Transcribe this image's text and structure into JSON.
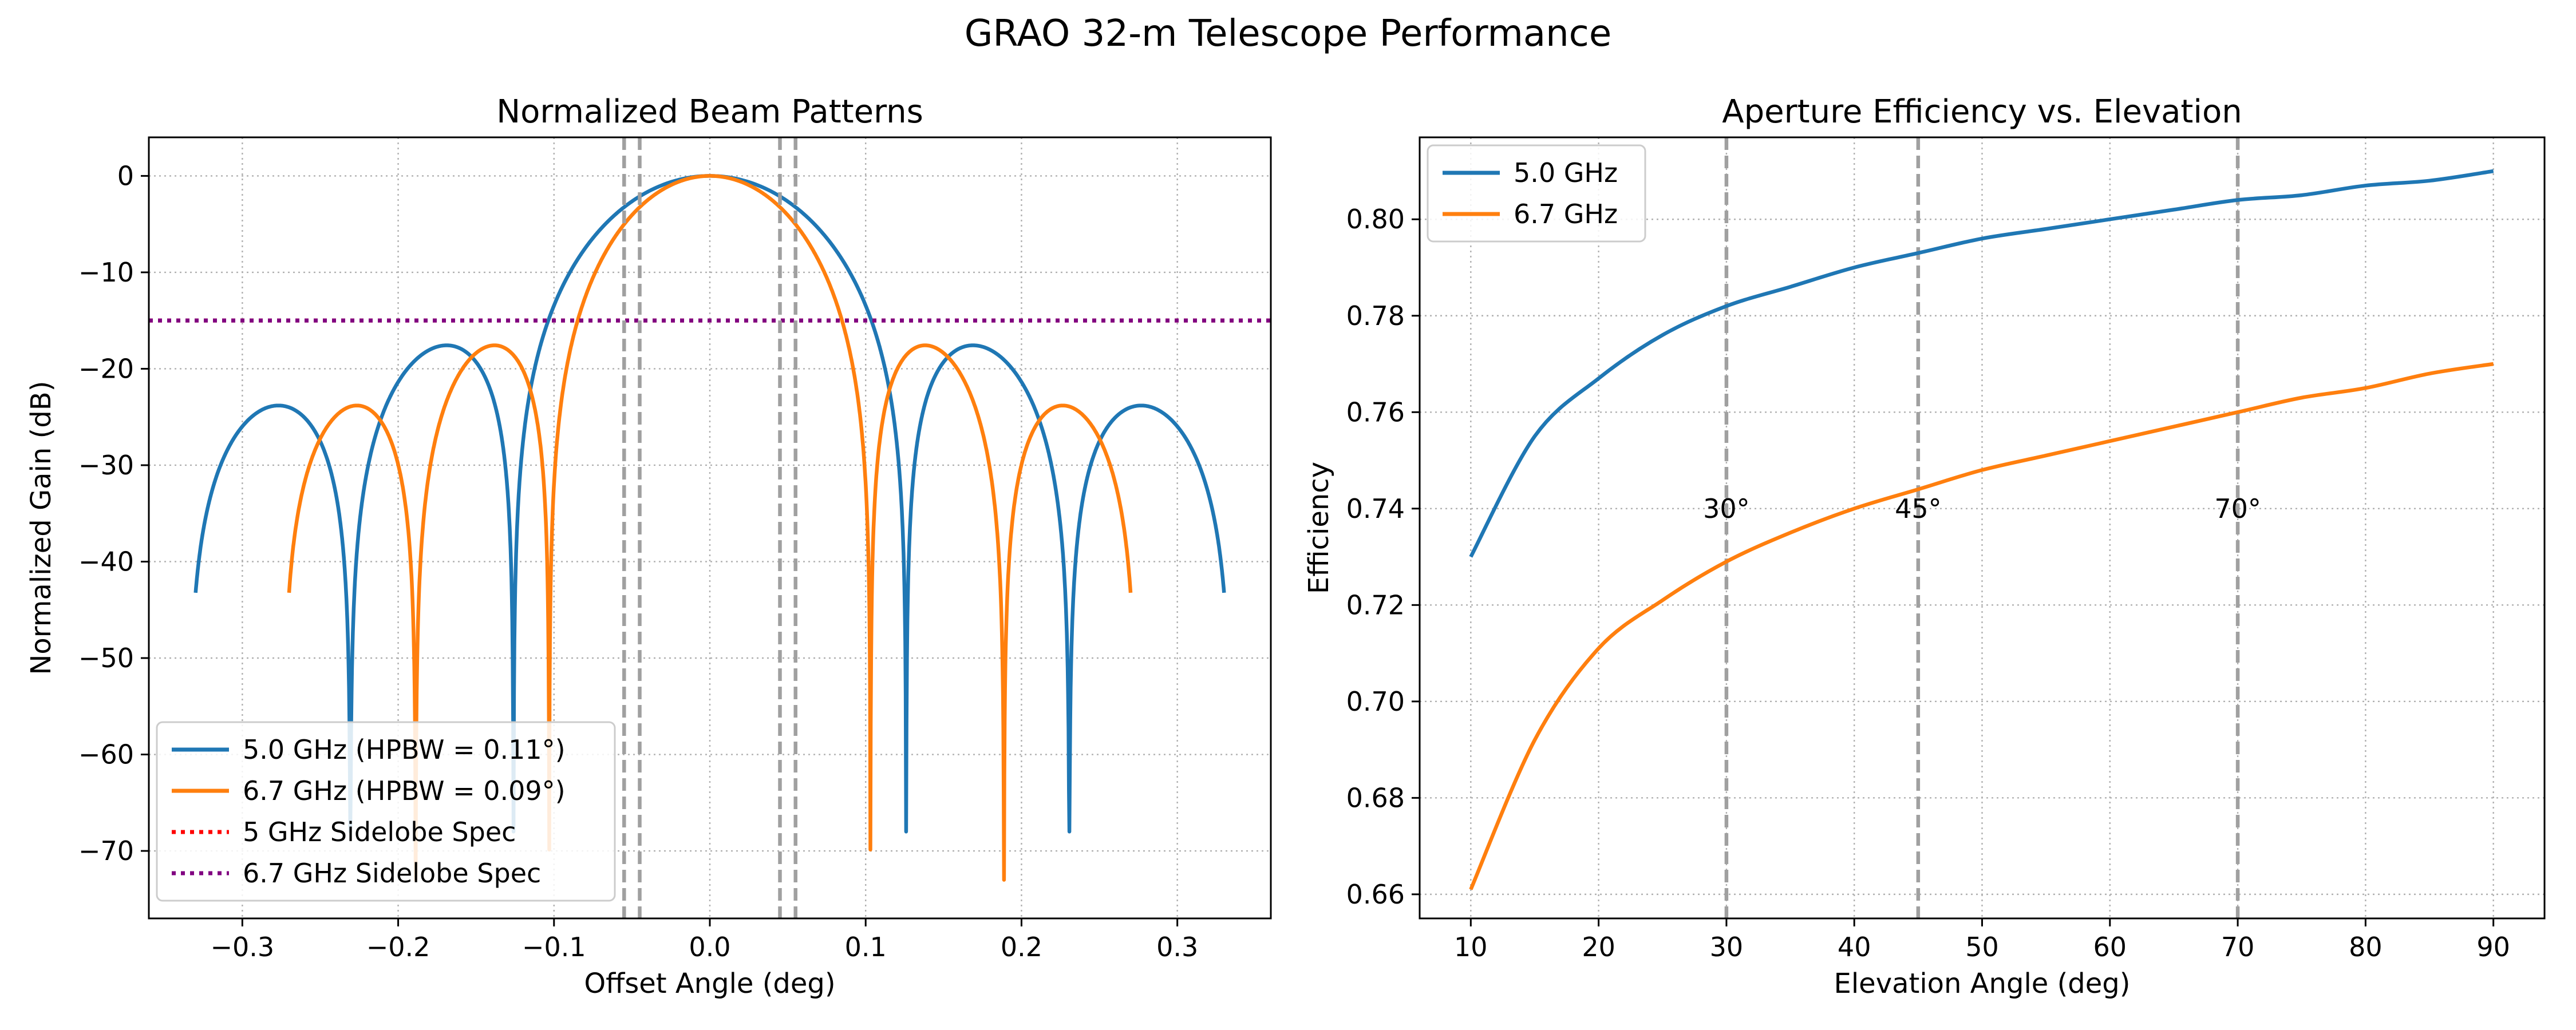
{
  "figure_title": "GRAO 32-m Telescope Performance",
  "colors": {
    "blue": "#1f77b4",
    "orange": "#ff7f0e",
    "red": "#ff0000",
    "purple": "#800080",
    "gray": "#a0a0a0",
    "grid": "#b0b0b0"
  },
  "chart_data": [
    {
      "type": "line",
      "title": "Normalized Beam Patterns",
      "xlabel": "Offset Angle (deg)",
      "ylabel": "Normalized Gain (dB)",
      "xlim": [
        -0.36,
        0.36
      ],
      "ylim": [
        -77,
        4
      ],
      "xticks": [
        -0.3,
        -0.2,
        -0.1,
        0.0,
        0.1,
        0.2,
        0.3
      ],
      "xtick_labels": [
        "−0.3",
        "−0.2",
        "−0.1",
        "0.0",
        "0.1",
        "0.2",
        "0.3"
      ],
      "yticks": [
        0,
        -10,
        -20,
        -30,
        -40,
        -50,
        -60,
        -70
      ],
      "ytick_labels": [
        "0",
        "−10",
        "−20",
        "−30",
        "−40",
        "−50",
        "−60",
        "−70"
      ],
      "grid": true,
      "legend_position": "lower-left",
      "series": [
        {
          "name": "5.0 GHz (HPBW = 0.11°)",
          "style": "solid",
          "color": "#1f77b4",
          "hpbw_deg": 0.11,
          "x_range": [
            -0.33,
            0.33
          ],
          "floor_db": -68
        },
        {
          "name": "6.7 GHz (HPBW = 0.09°)",
          "style": "solid",
          "color": "#ff7f0e",
          "hpbw_deg": 0.09,
          "x_range": [
            -0.27,
            0.27
          ],
          "floor_db": -73
        },
        {
          "name": "5 GHz Sidelobe Spec",
          "style": "dotted",
          "color": "#ff0000",
          "y": -15
        },
        {
          "name": "6.7 GHz Sidelobe Spec",
          "style": "dotted",
          "color": "#800080",
          "y": -15
        }
      ],
      "vlines": [
        -0.055,
        -0.045,
        0.045,
        0.055
      ]
    },
    {
      "type": "line",
      "title": "Aperture Efficiency vs. Elevation",
      "xlabel": "Elevation Angle (deg)",
      "ylabel": "Efficiency",
      "xlim": [
        6,
        94
      ],
      "ylim": [
        0.655,
        0.817
      ],
      "xticks": [
        10,
        20,
        30,
        40,
        50,
        60,
        70,
        80,
        90
      ],
      "xtick_labels": [
        "10",
        "20",
        "30",
        "40",
        "50",
        "60",
        "70",
        "80",
        "90"
      ],
      "yticks": [
        0.66,
        0.68,
        0.7,
        0.72,
        0.74,
        0.76,
        0.78,
        0.8
      ],
      "ytick_labels": [
        "0.66",
        "0.68",
        "0.70",
        "0.72",
        "0.74",
        "0.76",
        "0.78",
        "0.80"
      ],
      "grid": true,
      "legend_position": "upper-left",
      "series": [
        {
          "name": "5.0 GHz",
          "color": "#1f77b4",
          "x": [
            10,
            15,
            20,
            25,
            30,
            35,
            40,
            45,
            50,
            55,
            60,
            65,
            70,
            75,
            80,
            85,
            90
          ],
          "y": [
            0.73,
            0.755,
            0.767,
            0.776,
            0.782,
            0.786,
            0.79,
            0.793,
            0.796,
            0.798,
            0.8,
            0.802,
            0.804,
            0.805,
            0.807,
            0.808,
            0.81
          ]
        },
        {
          "name": "6.7 GHz",
          "color": "#ff7f0e",
          "x": [
            10,
            15,
            20,
            25,
            30,
            35,
            40,
            45,
            50,
            55,
            60,
            65,
            70,
            75,
            80,
            85,
            90
          ],
          "y": [
            0.661,
            0.692,
            0.711,
            0.721,
            0.729,
            0.735,
            0.74,
            0.744,
            0.748,
            0.751,
            0.754,
            0.757,
            0.76,
            0.763,
            0.765,
            0.768,
            0.77
          ]
        }
      ],
      "vlines": [
        30,
        45,
        70
      ],
      "annotations": [
        {
          "text": "30°",
          "x": 30,
          "y": 0.74
        },
        {
          "text": "45°",
          "x": 45,
          "y": 0.74
        },
        {
          "text": "70°",
          "x": 70,
          "y": 0.74
        }
      ]
    }
  ]
}
